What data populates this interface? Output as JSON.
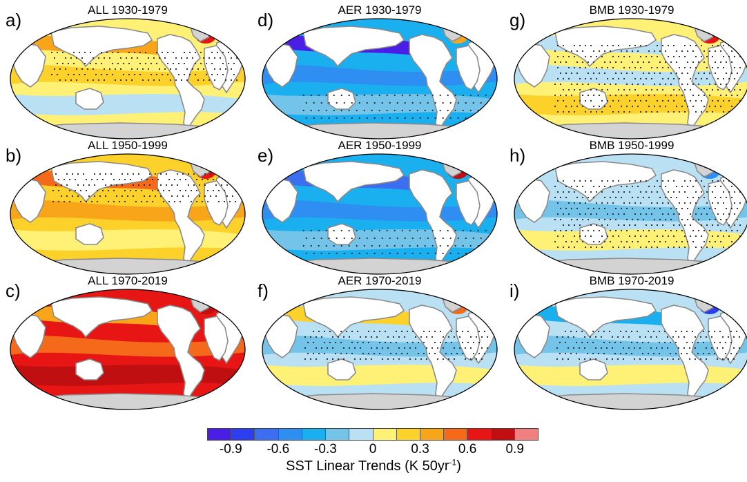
{
  "panels": [
    {
      "letter": "a)",
      "title": "ALL 1930-1979",
      "pattern": "warm-mixed",
      "stipple": "eq-north"
    },
    {
      "letter": "d)",
      "title": "AER 1930-1979",
      "pattern": "cool-strong",
      "stipple": "sparse-south"
    },
    {
      "letter": "g)",
      "title": "BMB 1930-1979",
      "pattern": "mixed-northwarm",
      "stipple": "broad"
    },
    {
      "letter": "b)",
      "title": "ALL 1950-1999",
      "pattern": "warm",
      "stipple": "north-pacific"
    },
    {
      "letter": "e)",
      "title": "AER 1950-1999",
      "pattern": "cool",
      "stipple": "sparse-south"
    },
    {
      "letter": "h)",
      "title": "BMB 1950-1999",
      "pattern": "cool-light",
      "stipple": "broad"
    },
    {
      "letter": "c)",
      "title": "ALL 1970-2019",
      "pattern": "hot",
      "stipple": "none"
    },
    {
      "letter": "f)",
      "title": "AER 1970-2019",
      "pattern": "cool-northwarm",
      "stipple": "tropics"
    },
    {
      "letter": "i)",
      "title": "BMB 1970-2019",
      "pattern": "cool-northcold",
      "stipple": "tropics"
    }
  ],
  "colorbar": {
    "colors": [
      "#4b1ee8",
      "#2d3ef0",
      "#3c6ef0",
      "#2e8ef2",
      "#1ab0ef",
      "#74c4ea",
      "#b9e0f3",
      "#fff176",
      "#fcd12a",
      "#f9a51a",
      "#f56a1a",
      "#e81515",
      "#c00f10",
      "#f08080"
    ],
    "tick_labels": [
      "-0.9",
      "-0.6",
      "-0.3",
      "0",
      "0.3",
      "0.6",
      "0.9"
    ],
    "title": "SST Linear Trends (K 50yr",
    "title_sup": "-1",
    "title_end": ")"
  }
}
